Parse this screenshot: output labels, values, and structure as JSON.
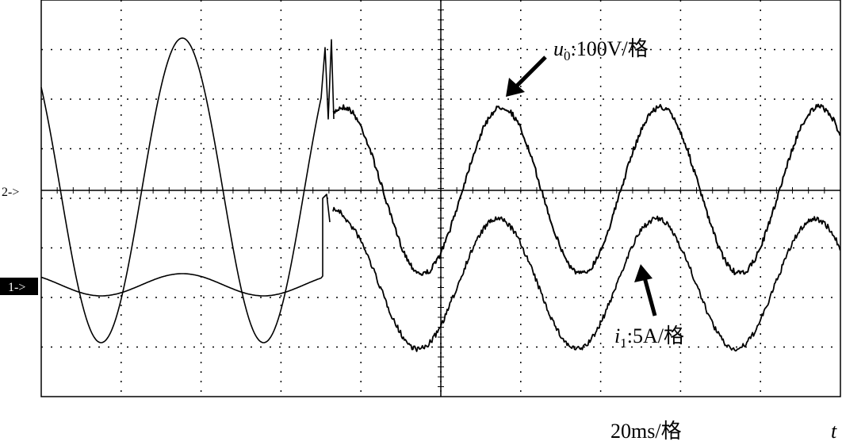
{
  "markers": {
    "channel_2": "2->",
    "channel_1": "1->"
  },
  "voltage_label": {
    "symbol": "u",
    "subscript": "0",
    "scale": ":100V/格"
  },
  "current_label": {
    "symbol": "i",
    "subscript": "1",
    "scale": ":5A/格"
  },
  "time_scale": "20ms/格",
  "time_axis": "t"
}
